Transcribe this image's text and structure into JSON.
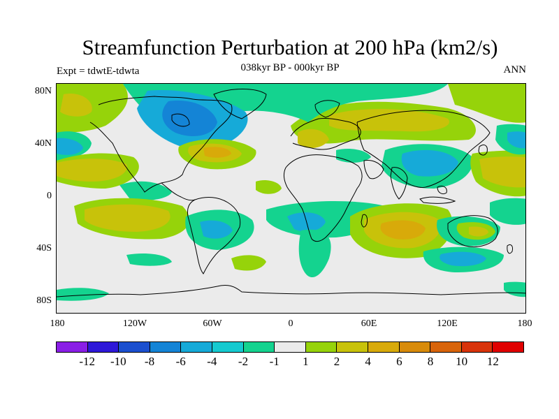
{
  "title": "Streamfunction Perturbation at 200 hPa (km2/s)",
  "subtitle": "038kyr BP - 000kyr BP",
  "experiment_label": "Expt = tdwtE-tdwta",
  "season_label": "ANN",
  "map": {
    "lat_ticks": [
      "80N",
      "40N",
      "0",
      "40S",
      "80S"
    ],
    "lon_ticks": [
      "180",
      "120W",
      "60W",
      "0",
      "60E",
      "120E",
      "180"
    ],
    "background_color": "#ebebeb",
    "coastline_color": "#000000"
  },
  "colorbar": {
    "colors": [
      "#8a1ee6",
      "#2e18d8",
      "#1b4fcf",
      "#1484d6",
      "#16aad8",
      "#15cad0",
      "#14d38f",
      "#ebebeb",
      "#96d30a",
      "#c8c20a",
      "#d8aa0a",
      "#d88b0a",
      "#d8640a",
      "#d8330a",
      "#e00000"
    ],
    "labels": [
      "-12",
      "-10",
      "-8",
      "-6",
      "-4",
      "-2",
      "-1",
      "1",
      "2",
      "4",
      "6",
      "8",
      "10",
      "12"
    ]
  }
}
